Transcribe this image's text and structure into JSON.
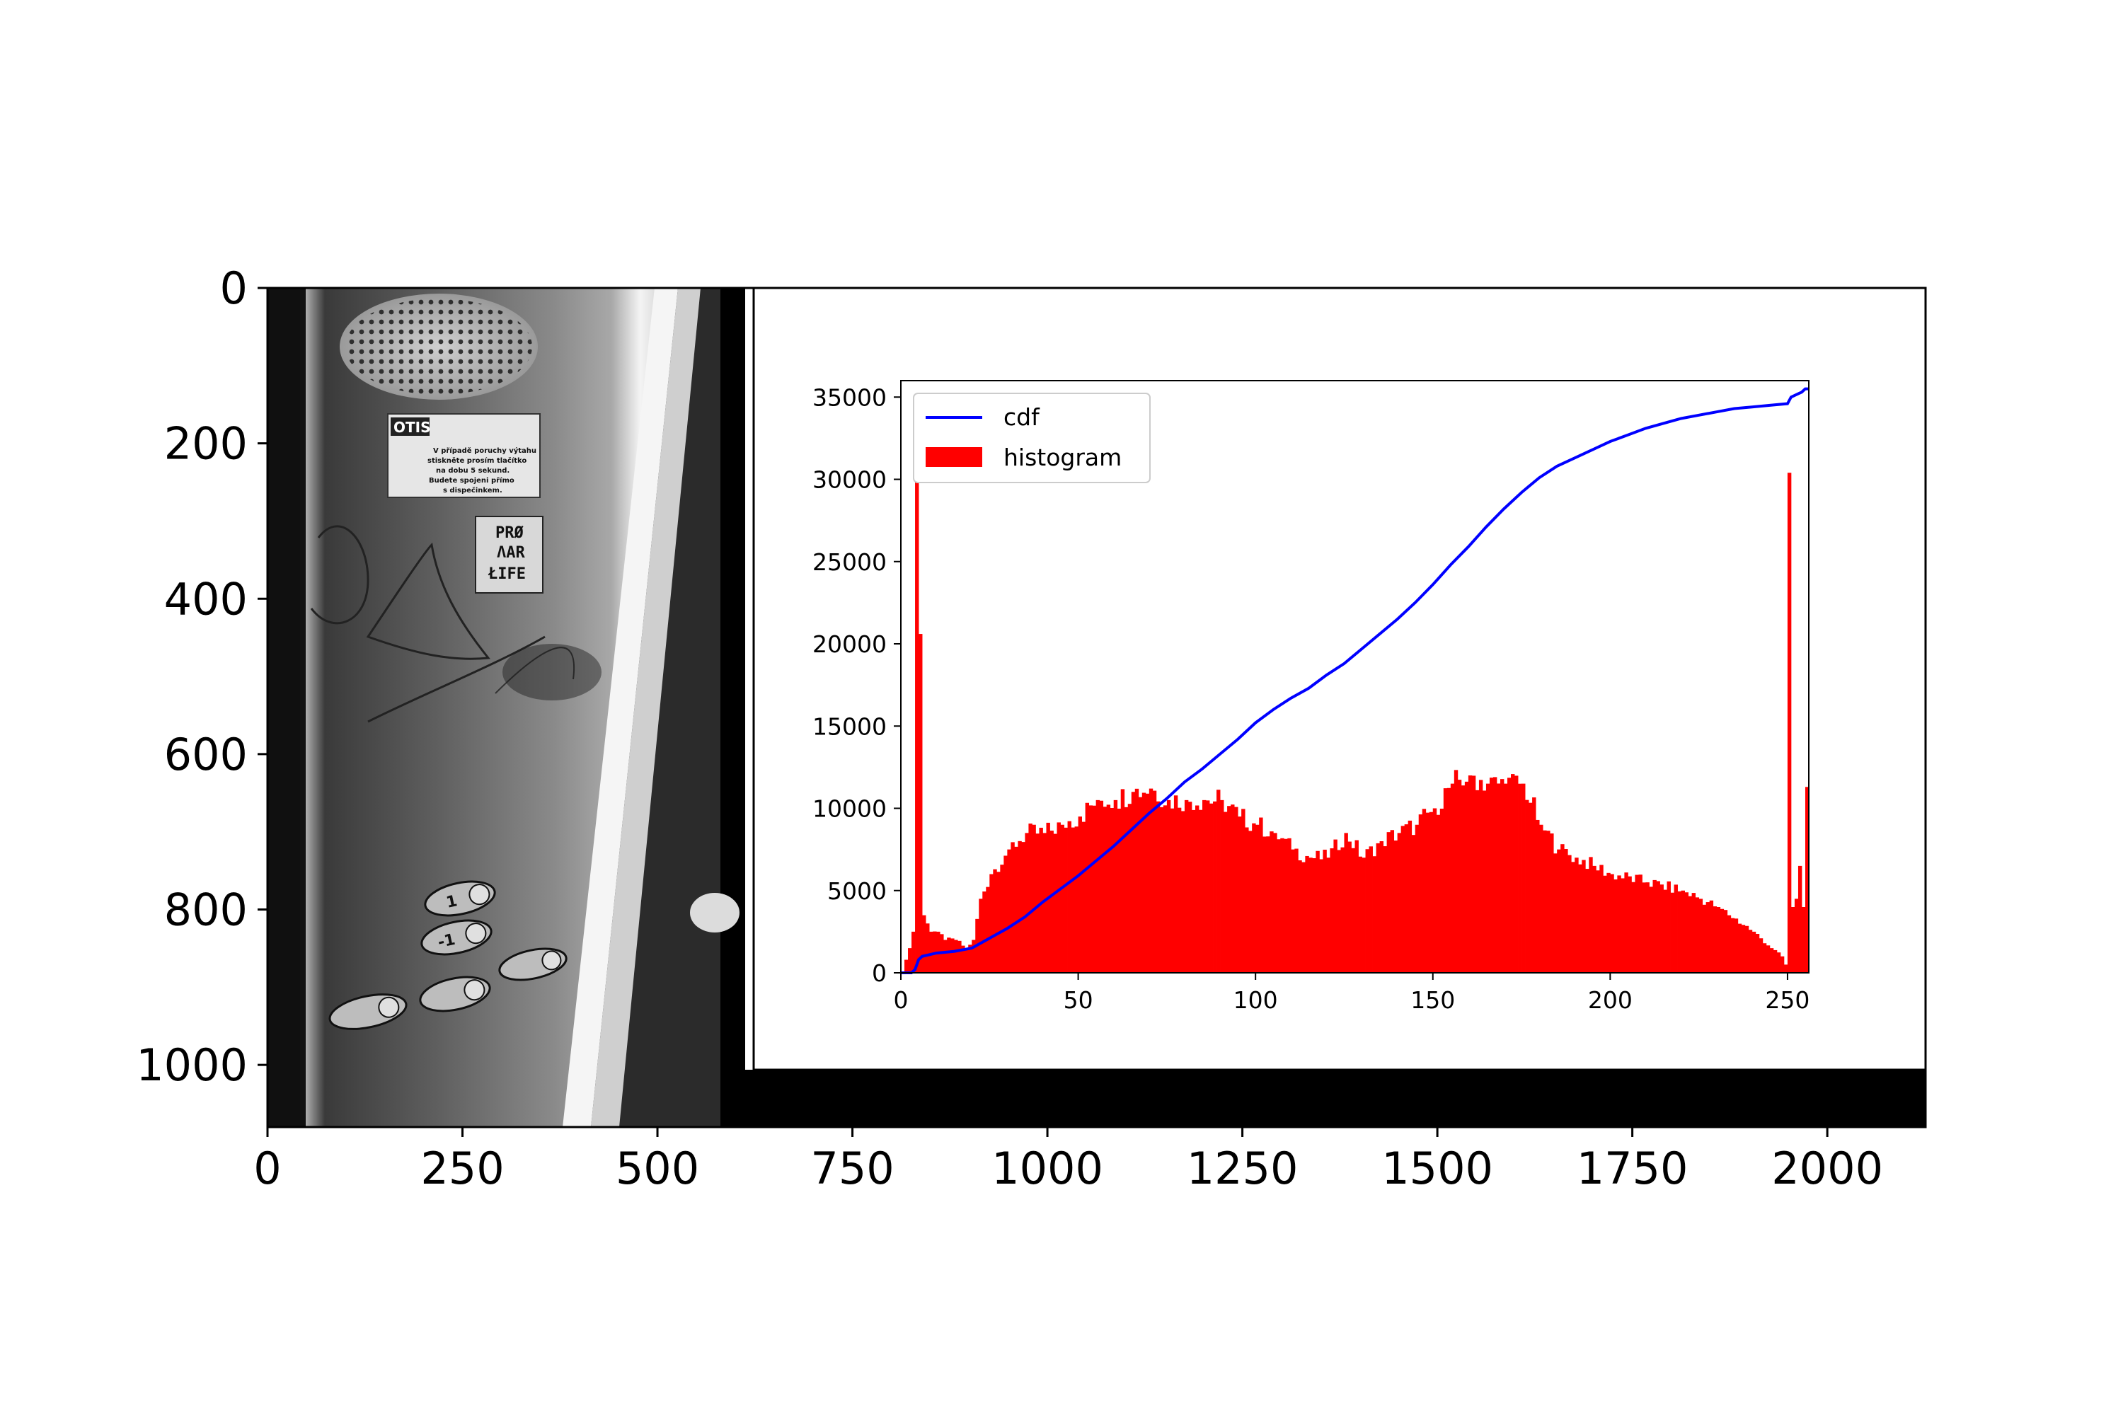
{
  "figure": {
    "outer_axes": {
      "x_ticks": [
        "0",
        "250",
        "500",
        "750",
        "1000",
        "1250",
        "1500",
        "1750",
        "2000"
      ],
      "x_tick_values": [
        0,
        250,
        500,
        750,
        1000,
        1250,
        1500,
        1750,
        2000
      ],
      "y_ticks": [
        "0",
        "200",
        "400",
        "600",
        "800",
        "1000"
      ],
      "y_tick_values": [
        0,
        200,
        400,
        600,
        800,
        1000
      ],
      "xlim": [
        0,
        2126
      ],
      "ylim": [
        1080,
        0
      ]
    },
    "photo": {
      "description_icon": "elevator-panel-photo",
      "extent_x": [
        0,
        612
      ],
      "sticker_brand": "OTIS",
      "sticker_lines": [
        "V případě poruchy výtahu",
        "stiskněte prosím tlačítko",
        "na dobu 5 sekund.",
        "Budete spojeni přímo",
        "s dispečinkem."
      ],
      "sticker2_lines": [
        "PRØ",
        "ΛAR",
        "ŁIFE"
      ],
      "buttons": [
        "1",
        "-1"
      ]
    }
  },
  "chart_data": {
    "type": "bar",
    "xlim": [
      0,
      256
    ],
    "ylim": [
      0,
      36000
    ],
    "x_ticks": [
      "0",
      "50",
      "100",
      "150",
      "200",
      "250"
    ],
    "x_tick_values": [
      0,
      50,
      100,
      150,
      200,
      250
    ],
    "y_ticks": [
      "0",
      "5000",
      "10000",
      "15000",
      "20000",
      "25000",
      "30000",
      "35000"
    ],
    "y_tick_values": [
      0,
      5000,
      10000,
      15000,
      20000,
      25000,
      30000,
      35000
    ],
    "legend": {
      "position": "upper-left",
      "entries": [
        "cdf",
        "histogram"
      ]
    },
    "colors": {
      "cdf": "#0000ff",
      "histogram": "#ff0000"
    },
    "series": [
      {
        "name": "histogram",
        "anchors_x": [
          0,
          2,
          3,
          4,
          5,
          6,
          7,
          8,
          10,
          12,
          15,
          18,
          20,
          22,
          25,
          30,
          35,
          40,
          45,
          50,
          55,
          60,
          65,
          70,
          75,
          80,
          85,
          90,
          95,
          100,
          105,
          110,
          115,
          120,
          125,
          130,
          135,
          140,
          145,
          150,
          155,
          160,
          165,
          170,
          175,
          180,
          185,
          190,
          195,
          200,
          210,
          220,
          230,
          240,
          245,
          248,
          249,
          250,
          251,
          252,
          253,
          254,
          255,
          256
        ],
        "anchors_y": [
          0,
          1500,
          2500,
          30500,
          20600,
          3500,
          3000,
          2500,
          2500,
          2000,
          2000,
          1500,
          2000,
          4500,
          6000,
          7500,
          8500,
          8500,
          9000,
          9500,
          10500,
          10500,
          11000,
          11200,
          10500,
          10500,
          10500,
          10500,
          9500,
          9000,
          8500,
          7500,
          7000,
          7000,
          8500,
          7000,
          8000,
          8500,
          9000,
          10000,
          11500,
          12000,
          11500,
          11500,
          11500,
          9000,
          7500,
          7000,
          6500,
          6000,
          5500,
          5000,
          4000,
          2500,
          1500,
          1000,
          500,
          30400,
          4000,
          4500,
          6500,
          4000,
          11300,
          0
        ]
      },
      {
        "name": "cdf",
        "x": [
          0,
          2,
          3,
          4,
          5,
          6,
          8,
          10,
          15,
          20,
          25,
          30,
          35,
          40,
          45,
          50,
          55,
          60,
          65,
          70,
          75,
          80,
          85,
          90,
          95,
          100,
          105,
          110,
          115,
          120,
          125,
          130,
          135,
          140,
          145,
          150,
          155,
          160,
          165,
          170,
          175,
          180,
          185,
          190,
          195,
          200,
          205,
          210,
          215,
          220,
          225,
          230,
          235,
          240,
          245,
          250,
          251,
          252,
          253,
          254,
          255,
          256
        ],
        "y": [
          0,
          0,
          0,
          200,
          800,
          1000,
          1100,
          1200,
          1300,
          1500,
          2100,
          2700,
          3400,
          4300,
          5100,
          5900,
          6800,
          7700,
          8700,
          9700,
          10600,
          11600,
          12400,
          13300,
          14200,
          15200,
          16000,
          16700,
          17300,
          18100,
          18800,
          19700,
          20600,
          21500,
          22500,
          23600,
          24800,
          25900,
          27100,
          28200,
          29200,
          30100,
          30800,
          31300,
          31800,
          32300,
          32700,
          33100,
          33400,
          33700,
          33900,
          34100,
          34300,
          34400,
          34500,
          34600,
          35000,
          35100,
          35200,
          35300,
          35500,
          35500
        ]
      }
    ]
  }
}
